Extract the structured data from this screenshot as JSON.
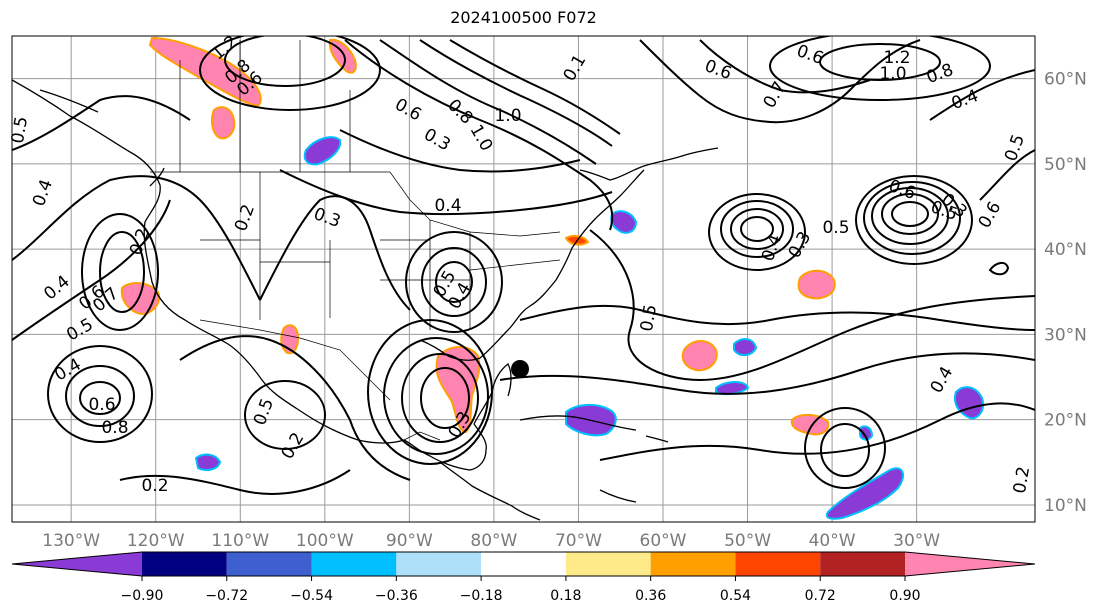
{
  "title": "2024100500 F072",
  "map": {
    "lon_range": [
      -137,
      -16
    ],
    "lat_range": [
      8,
      65
    ],
    "lon_labels": [
      "130°W",
      "120°W",
      "110°W",
      "100°W",
      "90°W",
      "80°W",
      "70°W",
      "60°W",
      "50°W",
      "40°W",
      "30°W"
    ],
    "lat_labels": [
      "60°N",
      "50°N",
      "40°N",
      "30°N",
      "20°N",
      "10°N"
    ],
    "label_color": "#7a7a7a",
    "contour_labels": [
      "1.2",
      "0.8",
      "0.6",
      "1.0",
      "0.6",
      "0.6",
      "1.2",
      "1.0",
      "0.8",
      "0.4",
      "0.5",
      "0.1",
      "0.7",
      "0.5",
      "0.4",
      "0.3",
      "0.8",
      "1.0",
      "0.6",
      "0.4",
      "0.3",
      "0.2",
      "0.2",
      "0.4",
      "0.6",
      "0.7",
      "0.5",
      "0.4",
      "0.6",
      "0.8",
      "0.5",
      "0.4",
      "0.5",
      "0.3",
      "0.5",
      "0.4",
      "0.5",
      "0.6",
      "0.6",
      "0.3",
      "0.4",
      "0.2",
      "0.5",
      "0.3",
      "0.2",
      "0.2"
    ]
  },
  "colorbar": {
    "ticks": [
      "−0.90",
      "−0.72",
      "−0.54",
      "−0.36",
      "−0.18",
      "0.18",
      "0.36",
      "0.54",
      "0.72",
      "0.90"
    ],
    "colors": [
      "#8a3bd6",
      "#000080",
      "#3e5fcf",
      "#00bfff",
      "#aee0fa",
      "#ffffff",
      "#ffea8a",
      "#ffa000",
      "#ff4500",
      "#b22222",
      "#ff85b0"
    ]
  }
}
